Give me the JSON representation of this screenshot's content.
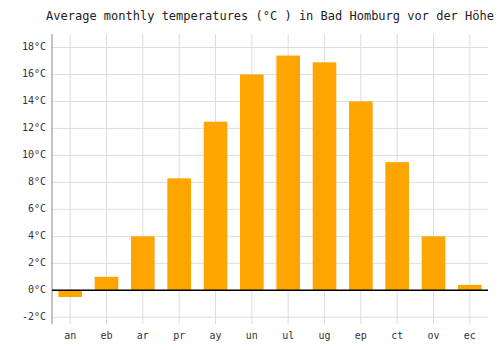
{
  "chart_data": {
    "type": "bar",
    "title": "Average monthly temperatures (°C ) in Bad Homburg vor der Höhe",
    "categories": [
      "an",
      "eb",
      "ar",
      "pr",
      "ay",
      "un",
      "ul",
      "ug",
      "ep",
      "ct",
      "ov",
      "ec"
    ],
    "values": [
      -0.5,
      1.0,
      4.0,
      8.3,
      12.5,
      16.0,
      17.4,
      16.9,
      14.0,
      9.5,
      4.0,
      0.4
    ],
    "color": "#FFA500",
    "ylim": [
      -2.5,
      19
    ],
    "yticks": [
      {
        "value": -2,
        "label": "-2°C"
      },
      {
        "value": 0,
        "label": "0°C"
      },
      {
        "value": 2,
        "label": "2°C"
      },
      {
        "value": 4,
        "label": "4°C"
      },
      {
        "value": 6,
        "label": "6°C"
      },
      {
        "value": 8,
        "label": "8°C"
      },
      {
        "value": 10,
        "label": "10°C"
      },
      {
        "value": 12,
        "label": "12°C"
      },
      {
        "value": 14,
        "label": "14°C"
      },
      {
        "value": 16,
        "label": "16°C"
      },
      {
        "value": 18,
        "label": "18°C"
      }
    ],
    "grid": true
  }
}
